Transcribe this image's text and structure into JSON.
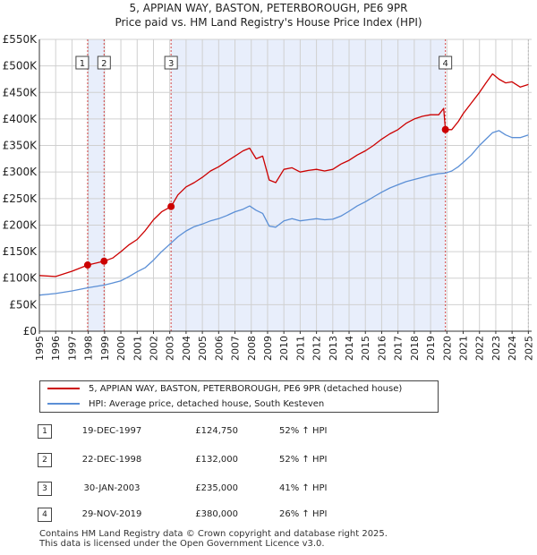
{
  "header": {
    "title": "5, APPIAN WAY, BASTON, PETERBOROUGH, PE6 9PR",
    "subtitle": "Price paid vs. HM Land Registry's House Price Index (HPI)"
  },
  "colors": {
    "property": "#cc0000",
    "hpi": "#5b8fd6",
    "shade": "#e8eefb",
    "marker_line": "#cc0000"
  },
  "chart_data": {
    "type": "line",
    "title": "Price paid vs. HM Land Registry's House Price Index (HPI)",
    "xlabel": "",
    "ylabel": "",
    "xlim": [
      1995,
      2025.2
    ],
    "ylim": [
      0,
      550000
    ],
    "y_ticks": [
      0,
      50000,
      100000,
      150000,
      200000,
      250000,
      300000,
      350000,
      400000,
      450000,
      500000,
      550000
    ],
    "y_tick_labels": [
      "£0",
      "£50K",
      "£100K",
      "£150K",
      "£200K",
      "£250K",
      "£300K",
      "£350K",
      "£400K",
      "£450K",
      "£500K",
      "£550K"
    ],
    "x_ticks": [
      1995,
      1996,
      1997,
      1998,
      1999,
      2000,
      2001,
      2002,
      2003,
      2004,
      2005,
      2006,
      2007,
      2008,
      2009,
      2010,
      2011,
      2012,
      2013,
      2014,
      2015,
      2016,
      2017,
      2018,
      2019,
      2020,
      2021,
      2022,
      2023,
      2024,
      2025
    ],
    "x_tick_labels": [
      "1995",
      "1996",
      "1997",
      "1998",
      "1999",
      "2000",
      "2001",
      "2002",
      "2003",
      "2004",
      "2005",
      "2006",
      "2007",
      "2008",
      "2009",
      "2010",
      "2011",
      "2012",
      "2013",
      "2014",
      "2015",
      "2016",
      "2017",
      "2018",
      "2019",
      "2020",
      "2021",
      "2022",
      "2023",
      "2024",
      "2025"
    ],
    "grid": true,
    "series": [
      {
        "name": "5, APPIAN WAY, BASTON, PETERBOROUGH, PE6 9PR (detached house)",
        "color": "#cc0000",
        "x": [
          1995.0,
          1996.0,
          1997.0,
          1997.96,
          1998.97,
          1999.5,
          2000.0,
          2000.5,
          2001.0,
          2001.5,
          2002.0,
          2002.5,
          2003.08,
          2003.5,
          2004.0,
          2004.5,
          2005.0,
          2005.5,
          2006.0,
          2006.5,
          2007.0,
          2007.5,
          2007.9,
          2008.3,
          2008.7,
          2009.1,
          2009.5,
          2010.0,
          2010.5,
          2011.0,
          2011.5,
          2012.0,
          2012.5,
          2013.0,
          2013.5,
          2014.0,
          2014.5,
          2015.0,
          2015.5,
          2016.0,
          2016.5,
          2017.0,
          2017.5,
          2018.0,
          2018.5,
          2019.0,
          2019.5,
          2019.8,
          2019.91,
          2020.3,
          2020.7,
          2021.0,
          2021.5,
          2022.0,
          2022.4,
          2022.8,
          2023.2,
          2023.6,
          2024.0,
          2024.5,
          2025.0
        ],
        "values": [
          105000,
          103000,
          113000,
          124750,
          132000,
          138000,
          150000,
          163000,
          173000,
          190000,
          210000,
          225000,
          235000,
          257000,
          272000,
          280000,
          290000,
          302000,
          310000,
          320000,
          330000,
          340000,
          345000,
          325000,
          330000,
          285000,
          280000,
          305000,
          308000,
          300000,
          303000,
          305000,
          302000,
          305000,
          315000,
          322000,
          332000,
          340000,
          350000,
          362000,
          372000,
          380000,
          392000,
          400000,
          405000,
          408000,
          408000,
          420000,
          380000,
          380000,
          395000,
          410000,
          430000,
          450000,
          468000,
          485000,
          475000,
          468000,
          470000,
          460000,
          465000
        ]
      },
      {
        "name": "HPI: Average price, detached house, South Kesteven",
        "color": "#5b8fd6",
        "x": [
          1995.0,
          1996.0,
          1997.0,
          1998.0,
          1999.0,
          1999.5,
          2000.0,
          2000.5,
          2001.0,
          2001.5,
          2002.0,
          2002.5,
          2003.0,
          2003.5,
          2004.0,
          2004.5,
          2005.0,
          2005.5,
          2006.0,
          2006.5,
          2007.0,
          2007.5,
          2007.9,
          2008.3,
          2008.7,
          2009.1,
          2009.5,
          2010.0,
          2010.5,
          2011.0,
          2011.5,
          2012.0,
          2012.5,
          2013.0,
          2013.5,
          2014.0,
          2014.5,
          2015.0,
          2015.5,
          2016.0,
          2016.5,
          2017.0,
          2017.5,
          2018.0,
          2018.5,
          2019.0,
          2019.5,
          2019.9,
          2020.3,
          2020.7,
          2021.0,
          2021.5,
          2022.0,
          2022.4,
          2022.8,
          2023.2,
          2023.6,
          2024.0,
          2024.5,
          2025.0
        ],
        "values": [
          68000,
          71000,
          76000,
          82000,
          87000,
          91000,
          95000,
          103000,
          112000,
          120000,
          134000,
          150000,
          164000,
          178000,
          189000,
          197000,
          202000,
          208000,
          212000,
          218000,
          225000,
          230000,
          236000,
          228000,
          222000,
          198000,
          196000,
          208000,
          212000,
          208000,
          210000,
          212000,
          210000,
          211000,
          217000,
          226000,
          236000,
          244000,
          253000,
          262000,
          270000,
          276000,
          282000,
          286000,
          290000,
          294000,
          297000,
          298000,
          302000,
          310000,
          318000,
          332000,
          350000,
          362000,
          374000,
          378000,
          370000,
          365000,
          365000,
          370000
        ]
      }
    ],
    "sale_markers": [
      {
        "label": "1",
        "x": 1997.96,
        "value": 124750
      },
      {
        "label": "2",
        "x": 1998.97,
        "value": 132000
      },
      {
        "label": "3",
        "x": 2003.08,
        "value": 235000
      },
      {
        "label": "4",
        "x": 2019.91,
        "value": 380000
      }
    ],
    "shaded_regions": [
      [
        1997.96,
        1998.97
      ],
      [
        2003.08,
        2019.91
      ]
    ]
  },
  "legend": {
    "property_label": "5, APPIAN WAY, BASTON, PETERBOROUGH, PE6 9PR (detached house)",
    "hpi_label": "HPI: Average price, detached house, South Kesteven"
  },
  "sales": [
    {
      "num": "1",
      "date": "19-DEC-1997",
      "price": "£124,750",
      "hpi": "52% ↑ HPI"
    },
    {
      "num": "2",
      "date": "22-DEC-1998",
      "price": "£132,000",
      "hpi": "52% ↑ HPI"
    },
    {
      "num": "3",
      "date": "30-JAN-2003",
      "price": "£235,000",
      "hpi": "41% ↑ HPI"
    },
    {
      "num": "4",
      "date": "29-NOV-2019",
      "price": "£380,000",
      "hpi": "26% ↑ HPI"
    }
  ],
  "footer": {
    "line1": "Contains HM Land Registry data © Crown copyright and database right 2025.",
    "line2": "This data is licensed under the Open Government Licence v3.0."
  }
}
